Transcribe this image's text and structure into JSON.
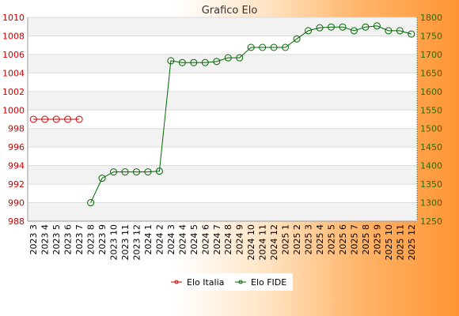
{
  "chart_data": {
    "type": "line",
    "title": "Grafico Elo",
    "x": [
      "2023 3",
      "2023 4",
      "2023 5",
      "2023 6",
      "2023 7",
      "2023 8",
      "2023 9",
      "2023 10",
      "2023 11",
      "2023 12",
      "2024 1",
      "2024 2",
      "2024 3",
      "2024 4",
      "2024 5",
      "2024 6",
      "2024 7",
      "2024 8",
      "2024 9",
      "2024 10",
      "2024 11",
      "2024 12",
      "2025 1",
      "2025 2",
      "2025 3",
      "2025 4",
      "2025 5",
      "2025 6",
      "2025 7",
      "2025 8",
      "2025 9",
      "2025 10",
      "2025 11",
      "2025 12"
    ],
    "series": [
      {
        "name": "Elo Italia",
        "color": "#cc0000",
        "axis": "left",
        "values": [
          999,
          999,
          999,
          999,
          999,
          null,
          null,
          null,
          null,
          null,
          null,
          null,
          null,
          null,
          null,
          null,
          null,
          null,
          null,
          null,
          null,
          null,
          null,
          null,
          null,
          null,
          null,
          null,
          null,
          null,
          null,
          null,
          null,
          null
        ]
      },
      {
        "name": "Elo FIDE",
        "color": "#006600",
        "axis": "right",
        "values": [
          null,
          null,
          null,
          null,
          null,
          1300,
          1366,
          1383,
          1383,
          1383,
          1383,
          1385,
          1683,
          1678,
          1678,
          1678,
          1681,
          1691,
          1691,
          1719,
          1719,
          1719,
          1719,
          1742,
          1764,
          1772,
          1774,
          1774,
          1764,
          1774,
          1777,
          1764,
          1764,
          1755
        ]
      }
    ],
    "y_left": {
      "ylim": [
        988,
        1010
      ],
      "ticks": [
        988,
        990,
        992,
        994,
        996,
        998,
        1000,
        1002,
        1004,
        1006,
        1008,
        1010
      ],
      "color": "#cc0000"
    },
    "y_right": {
      "ylim": [
        1250,
        1800
      ],
      "ticks": [
        1250,
        1300,
        1350,
        1400,
        1450,
        1500,
        1550,
        1600,
        1650,
        1700,
        1750,
        1800
      ],
      "color": "#336600"
    },
    "grid": true,
    "legend_position": "bottom"
  }
}
